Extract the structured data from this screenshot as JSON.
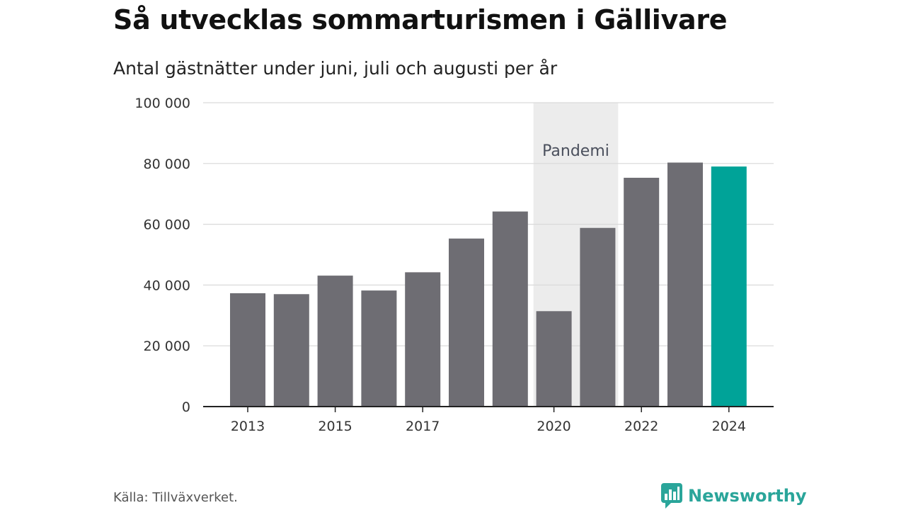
{
  "header": {
    "title": "Så utvecklas sommarturismen i Gällivare",
    "subtitle": "Antal gästnätter under juni, juli och augusti per år"
  },
  "footer": {
    "source": "Källa: Tillväxverket.",
    "brand": "Newsworthy"
  },
  "colors": {
    "bar": "#6e6d73",
    "highlight": "#00a398",
    "band": "#ececec",
    "grid": "#d9d9d9",
    "axis": "#222222"
  },
  "chart_data": {
    "type": "bar",
    "title": "Så utvecklas sommarturismen i Gällivare",
    "subtitle": "Antal gästnätter under juni, juli och augusti per år",
    "categories": [
      "2013",
      "2014",
      "2015",
      "2016",
      "2017",
      "2018",
      "2019",
      "2020",
      "2021",
      "2022",
      "2023",
      "2024"
    ],
    "values": [
      37300,
      37000,
      43100,
      38200,
      44200,
      55300,
      64200,
      31400,
      58800,
      75300,
      80300,
      79000
    ],
    "highlight_category": "2024",
    "x_tick_labels": [
      "2013",
      "2015",
      "2017",
      "2020",
      "2022",
      "2024"
    ],
    "y_ticks": [
      0,
      20000,
      40000,
      60000,
      80000,
      100000
    ],
    "y_tick_labels": [
      "0",
      "20 000",
      "40 000",
      "60 000",
      "80 000",
      "100 000"
    ],
    "ylim": [
      0,
      100000
    ],
    "grid": true,
    "annotation": {
      "label": "Pandemi",
      "from": "2020",
      "to": "2021"
    },
    "xlabel": "",
    "ylabel": ""
  }
}
